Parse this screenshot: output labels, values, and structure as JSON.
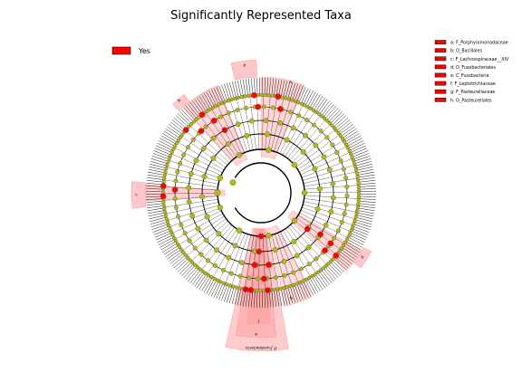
{
  "title": "Significantly Represented Taxa",
  "legend_main": {
    "label": "Yes",
    "color": "#ff0000"
  },
  "clade_legend": [
    {
      "key": "a",
      "label": "a: F_Porphyromonadaceae"
    },
    {
      "key": "b",
      "label": "b: O_Bacillales"
    },
    {
      "key": "c",
      "label": "c: F_Lachnospiraceae__XIV"
    },
    {
      "key": "d",
      "label": "d: O_Fusobacteriales"
    },
    {
      "key": "e",
      "label": "e: C_Fusobacteria"
    },
    {
      "key": "f",
      "label": "f: F_Leptotrichiaceae"
    },
    {
      "key": "g",
      "label": "g: F_Pasteurellaceae"
    },
    {
      "key": "h",
      "label": "h: O_Pasteurellales"
    }
  ],
  "sector_labels": {
    "bottom": "P_Fusobacteria",
    "a": "a",
    "b": "b",
    "c": "c",
    "d": "d",
    "e": "e",
    "f": "f",
    "g": "g",
    "h": "h"
  },
  "colors": {
    "node_default": "#b5b80f",
    "node_significant": "#ff0000",
    "highlight_fill": "#ff9999",
    "line": "#000000",
    "legend_box_fill": "#ff0000"
  }
}
